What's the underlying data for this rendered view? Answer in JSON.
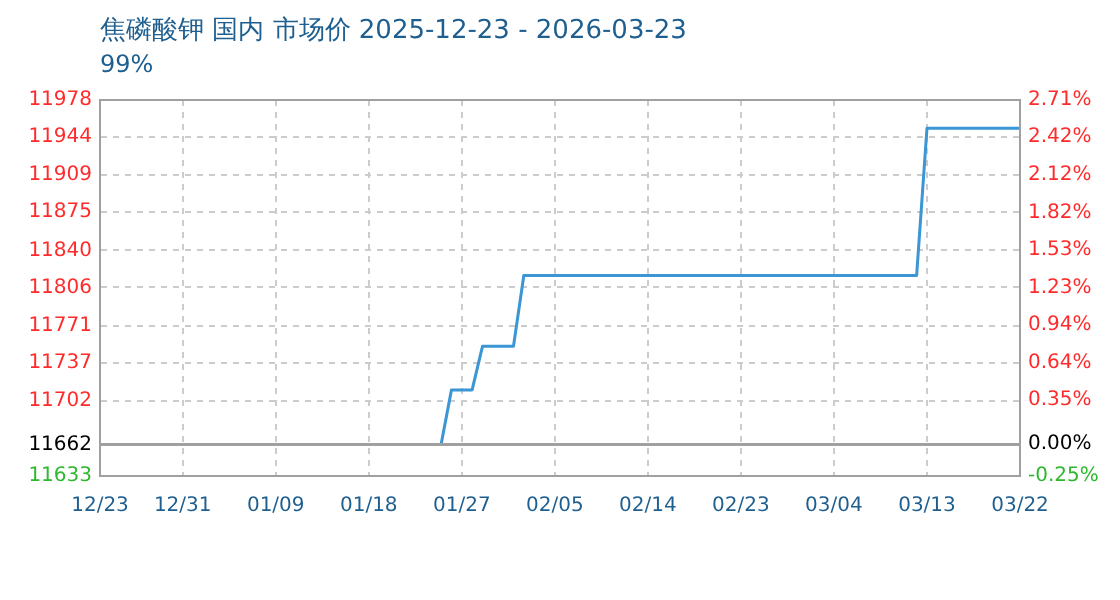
{
  "chart_data": {
    "type": "line",
    "title": "焦磷酸钾 国内 市场价 2025-12-23 - 2026-03-23",
    "subtitle": "99%",
    "x": [
      "2025-12-23",
      "2026-01-25",
      "2026-01-26",
      "2026-01-28",
      "2026-01-29",
      "2026-02-01",
      "2026-02-02",
      "2026-03-12",
      "2026-03-13",
      "2026-03-22"
    ],
    "series": [
      {
        "color": "#3a96d4",
        "values": [
          11662,
          11662,
          11712,
          11712,
          11752,
          11752,
          11817,
          11817,
          11952,
          11952
        ]
      }
    ],
    "xlim": [
      "2025-12-23",
      "2026-03-22"
    ],
    "xticks": [
      {
        "value": "2025-12-23",
        "label": "12/23"
      },
      {
        "value": "2025-12-31",
        "label": "12/31"
      },
      {
        "value": "2026-01-09",
        "label": "01/09"
      },
      {
        "value": "2026-01-18",
        "label": "01/18"
      },
      {
        "value": "2026-01-27",
        "label": "01/27"
      },
      {
        "value": "2026-02-05",
        "label": "02/05"
      },
      {
        "value": "2026-02-14",
        "label": "02/14"
      },
      {
        "value": "2026-02-23",
        "label": "02/23"
      },
      {
        "value": "2026-03-04",
        "label": "03/04"
      },
      {
        "value": "2026-03-13",
        "label": "03/13"
      },
      {
        "value": "2026-03-22",
        "label": "03/22"
      }
    ],
    "ylim": [
      11633,
      11978
    ],
    "yticks": [
      11633,
      11662,
      11702,
      11737,
      11771,
      11806,
      11840,
      11875,
      11909,
      11944,
      11978
    ],
    "y2lim": [
      -0.25,
      2.71
    ],
    "y2ticks": [
      {
        "value": -0.25,
        "label": "-0.25%"
      },
      {
        "value": 0,
        "label": "0.00%"
      },
      {
        "value": 0.35,
        "label": "0.35%"
      },
      {
        "value": 0.64,
        "label": "0.64%"
      },
      {
        "value": 0.94,
        "label": "0.94%"
      },
      {
        "value": 1.23,
        "label": "1.23%"
      },
      {
        "value": 1.53,
        "label": "1.53%"
      },
      {
        "value": 1.82,
        "label": "1.82%"
      },
      {
        "value": 2.12,
        "label": "2.12%"
      },
      {
        "value": 2.42,
        "label": "2.42%"
      },
      {
        "value": 2.71,
        "label": "2.71%"
      }
    ],
    "ref_lines": [
      {
        "axis": "y",
        "value": 11662,
        "color": "#a0a0a0"
      }
    ],
    "grid": true,
    "legend": false,
    "marker": "none",
    "line_style": "solid"
  }
}
